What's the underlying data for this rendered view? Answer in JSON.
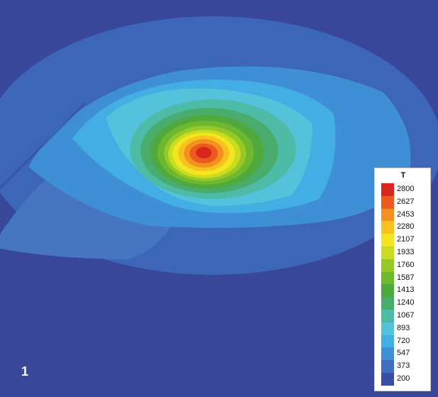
{
  "figure": {
    "panel_label": "1"
  },
  "colorbar": {
    "title": "T",
    "levels": [
      {
        "value": "2800",
        "color": "#d8281e"
      },
      {
        "value": "2627",
        "color": "#eb5a1e"
      },
      {
        "value": "2453",
        "color": "#f3901e"
      },
      {
        "value": "2280",
        "color": "#f8c21e"
      },
      {
        "value": "2107",
        "color": "#f1e61f"
      },
      {
        "value": "1933",
        "color": "#c9dc20"
      },
      {
        "value": "1760",
        "color": "#96c928"
      },
      {
        "value": "1587",
        "color": "#6db82f"
      },
      {
        "value": "1413",
        "color": "#4fa93d"
      },
      {
        "value": "1240",
        "color": "#48ad6c"
      },
      {
        "value": "1067",
        "color": "#4ebba7"
      },
      {
        "value": "893",
        "color": "#53c2da"
      },
      {
        "value": "720",
        "color": "#43aee3"
      },
      {
        "value": "547",
        "color": "#3f8fd6"
      },
      {
        "value": "373",
        "color": "#3e6fbf"
      },
      {
        "value": "200",
        "color": "#3a4fa4"
      }
    ]
  }
}
